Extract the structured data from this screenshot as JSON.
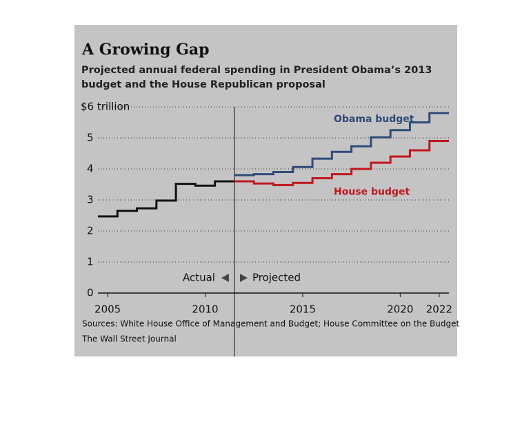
{
  "chart_data": {
    "type": "step",
    "title": "A Growing Gap",
    "subtitle": "Projected annual federal spending in President Obama’s 2013 budget and the House Republican proposal",
    "x": [
      2005,
      2006,
      2007,
      2008,
      2009,
      2010,
      2011,
      2012,
      2013,
      2014,
      2015,
      2016,
      2017,
      2018,
      2019,
      2020,
      2021,
      2022
    ],
    "series": [
      {
        "color": "#111111",
        "values": [
          2.47,
          2.65,
          2.73,
          2.98,
          3.52,
          3.46,
          3.6,
          null,
          null,
          null,
          null,
          null,
          null,
          null,
          null,
          null,
          null,
          null
        ]
      },
      {
        "name": "Obama budget",
        "color": "#2e4a78",
        "values": [
          null,
          null,
          null,
          null,
          null,
          null,
          null,
          3.8,
          3.83,
          3.9,
          4.06,
          4.33,
          4.55,
          4.73,
          5.02,
          5.25,
          5.5,
          5.8
        ]
      },
      {
        "name": "House budget",
        "color": "#c0161c",
        "values": [
          null,
          null,
          null,
          null,
          null,
          null,
          null,
          3.6,
          3.53,
          3.48,
          3.55,
          3.7,
          3.83,
          4.0,
          4.2,
          4.4,
          4.6,
          4.9
        ]
      }
    ],
    "divider": 2011.5,
    "annotations": {
      "actual": "Actual",
      "projected": "Projected"
    },
    "xlim": [
      2004.5,
      2022.5
    ],
    "xticks": [
      2005,
      2010,
      2015,
      2020,
      2022
    ],
    "ylim": [
      0,
      6
    ],
    "yticks": [
      0,
      1,
      2,
      3,
      4,
      5,
      {
        "value": 6,
        "label": "$6 trillion"
      }
    ],
    "grid": true,
    "source": "Sources: White House Office of Management and Budget; House Committee on the Budget",
    "credit": "The Wall Street Journal"
  }
}
